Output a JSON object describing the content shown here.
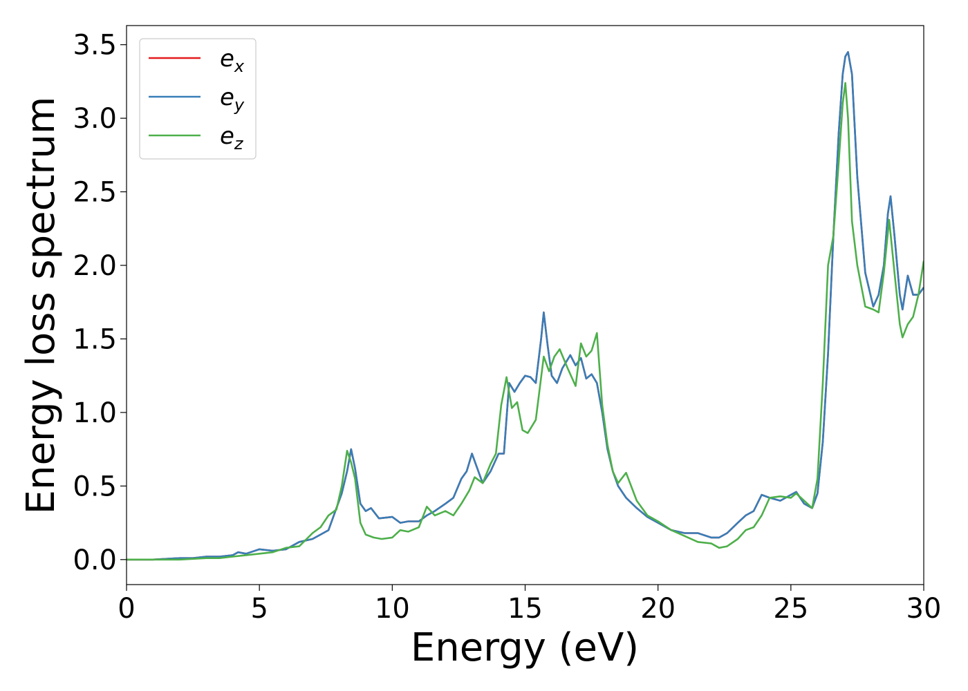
{
  "chart_data": {
    "type": "line",
    "title": "",
    "xlabel": "Energy (eV)",
    "ylabel": "Energy loss spectrum",
    "xlim": [
      0,
      30
    ],
    "ylim": [
      -0.17,
      3.63
    ],
    "xticks": [
      0,
      5,
      10,
      15,
      20,
      25,
      30
    ],
    "yticks": [
      0.0,
      0.5,
      1.0,
      1.5,
      2.0,
      2.5,
      3.0,
      3.5
    ],
    "xtick_labels": [
      "0",
      "5",
      "10",
      "15",
      "20",
      "25",
      "30"
    ],
    "ytick_labels": [
      "0.0",
      "0.5",
      "1.0",
      "1.5",
      "2.0",
      "2.5",
      "3.0",
      "3.5"
    ],
    "grid": false,
    "legend_position": "top-left",
    "series": [
      {
        "name_base": "e",
        "name_sub": "x",
        "color": "#e41a1c",
        "x": [
          0,
          1,
          2,
          2.5,
          3,
          3.5,
          4,
          4.2,
          4.5,
          5,
          5.5,
          6,
          6.5,
          7,
          7.3,
          7.6,
          7.9,
          8.1,
          8.3,
          8.45,
          8.6,
          8.8,
          9.0,
          9.2,
          9.5,
          10,
          10.3,
          10.6,
          11,
          11.3,
          11.6,
          12,
          12.3,
          12.6,
          12.8,
          13.0,
          13.2,
          13.4,
          13.7,
          14.0,
          14.2,
          14.4,
          14.6,
          14.8,
          15.0,
          15.2,
          15.4,
          15.6,
          15.7,
          15.85,
          16.0,
          16.2,
          16.4,
          16.7,
          16.9,
          17.1,
          17.3,
          17.5,
          17.7,
          17.9,
          18.1,
          18.3,
          18.5,
          18.8,
          19.2,
          19.6,
          20,
          20.5,
          21,
          21.5,
          22,
          22.3,
          22.6,
          23,
          23.3,
          23.6,
          23.9,
          24.2,
          24.6,
          25.0,
          25.2,
          25.5,
          25.8,
          26.0,
          26.2,
          26.4,
          26.6,
          26.8,
          26.95,
          27.05,
          27.15,
          27.3,
          27.5,
          27.8,
          28.1,
          28.3,
          28.5,
          28.65,
          28.75,
          28.9,
          29.1,
          29.2,
          29.4,
          29.6,
          29.8,
          30
        ],
        "y": [
          0,
          0,
          0.01,
          0.01,
          0.02,
          0.02,
          0.03,
          0.05,
          0.04,
          0.07,
          0.06,
          0.07,
          0.12,
          0.14,
          0.17,
          0.2,
          0.35,
          0.45,
          0.6,
          0.75,
          0.62,
          0.38,
          0.33,
          0.35,
          0.28,
          0.29,
          0.25,
          0.26,
          0.26,
          0.3,
          0.33,
          0.38,
          0.42,
          0.55,
          0.6,
          0.72,
          0.62,
          0.52,
          0.6,
          0.72,
          0.72,
          1.2,
          1.14,
          1.2,
          1.25,
          1.24,
          1.2,
          1.5,
          1.68,
          1.45,
          1.25,
          1.2,
          1.3,
          1.39,
          1.32,
          1.37,
          1.23,
          1.26,
          1.2,
          1.0,
          0.75,
          0.6,
          0.5,
          0.42,
          0.35,
          0.29,
          0.25,
          0.2,
          0.18,
          0.18,
          0.15,
          0.15,
          0.18,
          0.25,
          0.3,
          0.33,
          0.44,
          0.42,
          0.4,
          0.44,
          0.46,
          0.38,
          0.35,
          0.45,
          0.8,
          1.4,
          2.2,
          2.9,
          3.3,
          3.42,
          3.45,
          3.3,
          2.6,
          1.95,
          1.72,
          1.8,
          2.0,
          2.35,
          2.47,
          2.2,
          1.8,
          1.7,
          1.93,
          1.8,
          1.8,
          1.85
        ]
      },
      {
        "name_base": "e",
        "name_sub": "y",
        "color": "#377eb8",
        "x": [
          0,
          1,
          2,
          2.5,
          3,
          3.5,
          4,
          4.2,
          4.5,
          5,
          5.5,
          6,
          6.5,
          7,
          7.3,
          7.6,
          7.9,
          8.1,
          8.3,
          8.45,
          8.6,
          8.8,
          9.0,
          9.2,
          9.5,
          10,
          10.3,
          10.6,
          11,
          11.3,
          11.6,
          12,
          12.3,
          12.6,
          12.8,
          13.0,
          13.2,
          13.4,
          13.7,
          14.0,
          14.2,
          14.4,
          14.6,
          14.8,
          15.0,
          15.2,
          15.4,
          15.6,
          15.7,
          15.85,
          16.0,
          16.2,
          16.4,
          16.7,
          16.9,
          17.1,
          17.3,
          17.5,
          17.7,
          17.9,
          18.1,
          18.3,
          18.5,
          18.8,
          19.2,
          19.6,
          20,
          20.5,
          21,
          21.5,
          22,
          22.3,
          22.6,
          23,
          23.3,
          23.6,
          23.9,
          24.2,
          24.6,
          25.0,
          25.2,
          25.5,
          25.8,
          26.0,
          26.2,
          26.4,
          26.6,
          26.8,
          26.95,
          27.05,
          27.15,
          27.3,
          27.5,
          27.8,
          28.1,
          28.3,
          28.5,
          28.65,
          28.75,
          28.9,
          29.1,
          29.2,
          29.4,
          29.6,
          29.8,
          30
        ],
        "y": [
          0,
          0,
          0.01,
          0.01,
          0.02,
          0.02,
          0.03,
          0.05,
          0.04,
          0.07,
          0.06,
          0.07,
          0.12,
          0.14,
          0.17,
          0.2,
          0.35,
          0.45,
          0.6,
          0.75,
          0.62,
          0.38,
          0.33,
          0.35,
          0.28,
          0.29,
          0.25,
          0.26,
          0.26,
          0.3,
          0.33,
          0.38,
          0.42,
          0.55,
          0.6,
          0.72,
          0.62,
          0.52,
          0.6,
          0.72,
          0.72,
          1.2,
          1.14,
          1.2,
          1.25,
          1.24,
          1.2,
          1.5,
          1.68,
          1.45,
          1.25,
          1.2,
          1.3,
          1.39,
          1.32,
          1.37,
          1.23,
          1.26,
          1.2,
          1.0,
          0.75,
          0.6,
          0.5,
          0.42,
          0.35,
          0.29,
          0.25,
          0.2,
          0.18,
          0.18,
          0.15,
          0.15,
          0.18,
          0.25,
          0.3,
          0.33,
          0.44,
          0.42,
          0.4,
          0.44,
          0.46,
          0.38,
          0.35,
          0.45,
          0.8,
          1.4,
          2.2,
          2.9,
          3.3,
          3.42,
          3.45,
          3.3,
          2.6,
          1.95,
          1.72,
          1.8,
          2.0,
          2.35,
          2.47,
          2.2,
          1.8,
          1.7,
          1.93,
          1.8,
          1.8,
          1.85
        ]
      },
      {
        "name_base": "e",
        "name_sub": "z",
        "color": "#4daf4a",
        "x": [
          0,
          1,
          2,
          3,
          3.5,
          4,
          4.5,
          5,
          5.5,
          6,
          6.5,
          7,
          7.3,
          7.6,
          7.9,
          8.1,
          8.3,
          8.45,
          8.6,
          8.8,
          9.0,
          9.3,
          9.6,
          10,
          10.3,
          10.6,
          11,
          11.3,
          11.6,
          12,
          12.3,
          12.6,
          12.9,
          13.1,
          13.4,
          13.7,
          13.9,
          14.1,
          14.3,
          14.5,
          14.7,
          14.9,
          15.1,
          15.4,
          15.7,
          15.9,
          16.1,
          16.3,
          16.6,
          16.9,
          17.1,
          17.3,
          17.5,
          17.7,
          17.9,
          18.1,
          18.3,
          18.5,
          18.8,
          19.2,
          19.6,
          20,
          20.5,
          21,
          21.5,
          22,
          22.3,
          22.6,
          23,
          23.3,
          23.6,
          23.9,
          24.2,
          24.6,
          25.0,
          25.2,
          25.5,
          25.8,
          26.0,
          26.2,
          26.4,
          26.6,
          26.8,
          26.95,
          27.05,
          27.15,
          27.3,
          27.5,
          27.8,
          28.1,
          28.3,
          28.5,
          28.7,
          28.9,
          29.1,
          29.2,
          29.4,
          29.6,
          29.8,
          30
        ],
        "y": [
          0,
          0,
          0,
          0.01,
          0.01,
          0.02,
          0.03,
          0.04,
          0.05,
          0.08,
          0.09,
          0.18,
          0.22,
          0.3,
          0.34,
          0.5,
          0.74,
          0.66,
          0.55,
          0.25,
          0.17,
          0.15,
          0.14,
          0.15,
          0.2,
          0.19,
          0.22,
          0.36,
          0.3,
          0.33,
          0.3,
          0.38,
          0.47,
          0.56,
          0.52,
          0.65,
          0.72,
          1.05,
          1.24,
          1.03,
          1.07,
          0.88,
          0.86,
          0.95,
          1.38,
          1.28,
          1.38,
          1.43,
          1.3,
          1.18,
          1.47,
          1.38,
          1.42,
          1.54,
          1.05,
          0.78,
          0.6,
          0.52,
          0.59,
          0.4,
          0.3,
          0.26,
          0.2,
          0.16,
          0.12,
          0.11,
          0.08,
          0.09,
          0.14,
          0.2,
          0.22,
          0.3,
          0.42,
          0.43,
          0.42,
          0.45,
          0.4,
          0.35,
          0.55,
          1.2,
          2.0,
          2.2,
          2.7,
          3.1,
          3.24,
          3.0,
          2.3,
          2.0,
          1.72,
          1.7,
          1.68,
          1.95,
          2.31,
          1.95,
          1.6,
          1.51,
          1.6,
          1.65,
          1.8,
          2.03
        ]
      }
    ]
  }
}
